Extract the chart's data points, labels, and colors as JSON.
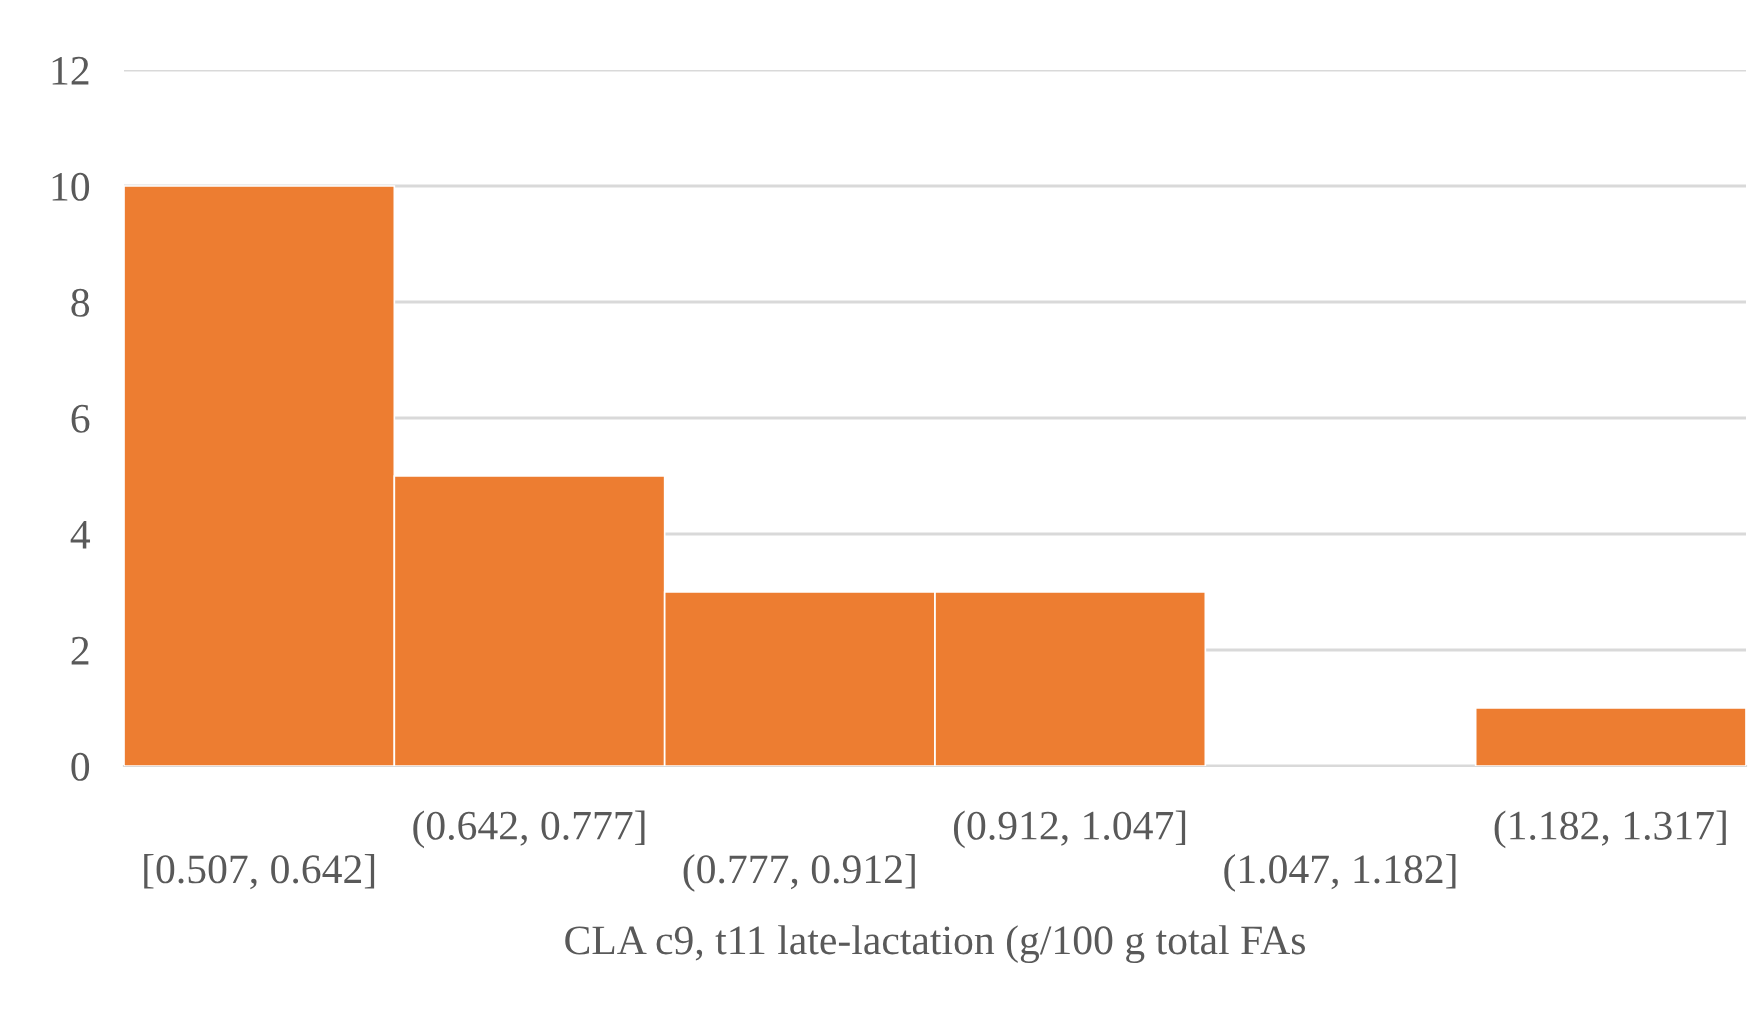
{
  "chart_data": {
    "type": "bar",
    "xlabel": "CLA c9, t11 late-lactation (g/100 g total FAs",
    "categories": [
      "[0.507, 0.642]",
      "(0.642, 0.777]",
      "(0.777, 0.912]",
      "(0.912, 1.047]",
      "(1.047, 1.182]",
      "(1.182, 1.317]"
    ],
    "values": [
      10,
      5,
      3,
      3,
      0,
      1
    ],
    "color": "#ed7d31",
    "ylim": [
      0,
      12
    ],
    "yticks": [
      0,
      2,
      4,
      6,
      8,
      10,
      12
    ],
    "grid": "y"
  }
}
